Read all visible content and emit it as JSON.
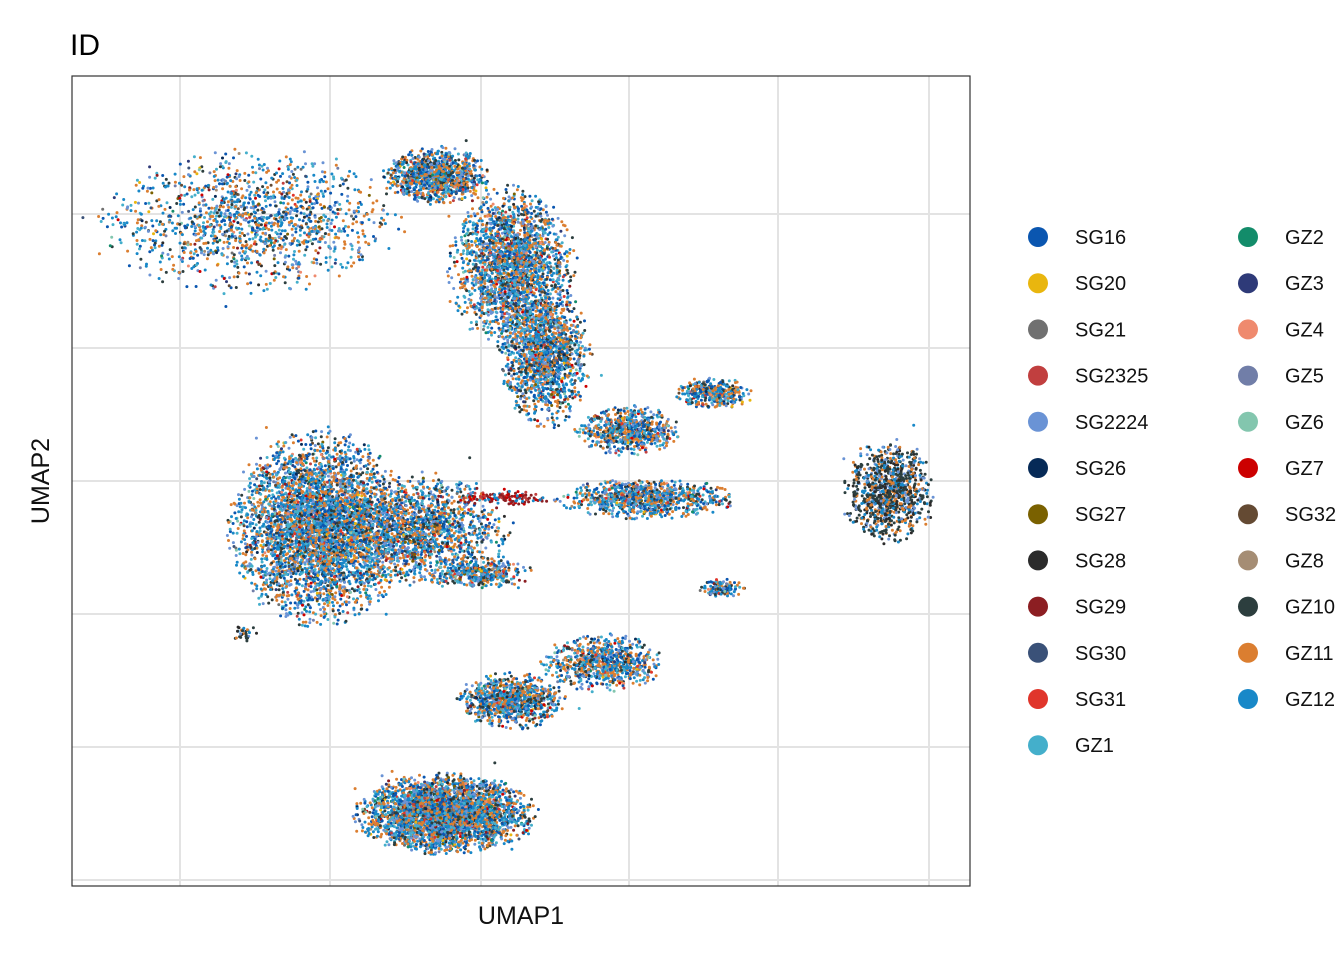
{
  "chart_data": {
    "type": "scatter",
    "title": "ID",
    "xlabel": "UMAP1",
    "ylabel": "UMAP2",
    "grid": true,
    "legend_placement": "right",
    "legend": {
      "columns": 2,
      "entries": [
        {
          "name": "SG16",
          "color": "#0A56B0"
        },
        {
          "name": "SG20",
          "color": "#E9B60E"
        },
        {
          "name": "SG21",
          "color": "#707070"
        },
        {
          "name": "SG2325",
          "color": "#C13F3F"
        },
        {
          "name": "SG2224",
          "color": "#6A93D5"
        },
        {
          "name": "SG26",
          "color": "#062A57"
        },
        {
          "name": "SG27",
          "color": "#7A6100"
        },
        {
          "name": "SG28",
          "color": "#2B2B2B"
        },
        {
          "name": "SG29",
          "color": "#8C1E22"
        },
        {
          "name": "SG30",
          "color": "#3A5178"
        },
        {
          "name": "SG31",
          "color": "#E0352B"
        },
        {
          "name": "GZ1",
          "color": "#44AFCB"
        },
        {
          "name": "GZ2",
          "color": "#138C6A"
        },
        {
          "name": "GZ3",
          "color": "#2E3A78"
        },
        {
          "name": "GZ4",
          "color": "#EF8A6E"
        },
        {
          "name": "GZ5",
          "color": "#717EA8"
        },
        {
          "name": "GZ6",
          "color": "#83C6AE"
        },
        {
          "name": "GZ7",
          "color": "#CC0000"
        },
        {
          "name": "SG32",
          "color": "#644A33"
        },
        {
          "name": "GZ8",
          "color": "#A58D74"
        },
        {
          "name": "GZ10",
          "color": "#2C3E3E"
        },
        {
          "name": "GZ11",
          "color": "#DB7E30"
        },
        {
          "name": "GZ12",
          "color": "#1888C8"
        }
      ]
    },
    "clusters": [
      {
        "cx": 0.2,
        "cy": 0.86,
        "rx": 0.17,
        "ry": 0.09,
        "n": 1400,
        "mix": "mixed"
      },
      {
        "cx": 0.42,
        "cy": 0.92,
        "rx": 0.06,
        "ry": 0.035,
        "n": 1100,
        "mix": "mixed"
      },
      {
        "cx": 0.51,
        "cy": 0.8,
        "rx": 0.07,
        "ry": 0.1,
        "n": 2200,
        "mix": "mixed"
      },
      {
        "cx": 0.55,
        "cy": 0.68,
        "rx": 0.05,
        "ry": 0.09,
        "n": 1500,
        "mix": "mixed"
      },
      {
        "cx": 0.65,
        "cy": 0.58,
        "rx": 0.06,
        "ry": 0.03,
        "n": 700,
        "mix": "mixed"
      },
      {
        "cx": 0.75,
        "cy": 0.63,
        "rx": 0.045,
        "ry": 0.02,
        "n": 350,
        "mix": "mixed"
      },
      {
        "cx": 0.96,
        "cy": 0.5,
        "rx": 0.05,
        "ry": 0.065,
        "n": 1000,
        "mix": "dark"
      },
      {
        "cx": 0.28,
        "cy": 0.45,
        "rx": 0.1,
        "ry": 0.12,
        "n": 4200,
        "mix": "mixed"
      },
      {
        "cx": 0.4,
        "cy": 0.45,
        "rx": 0.1,
        "ry": 0.07,
        "n": 1600,
        "mix": "mixed"
      },
      {
        "cx": 0.47,
        "cy": 0.39,
        "rx": 0.06,
        "ry": 0.02,
        "n": 400,
        "mix": "mixed"
      },
      {
        "cx": 0.67,
        "cy": 0.49,
        "rx": 0.1,
        "ry": 0.025,
        "n": 900,
        "mix": "mixed"
      },
      {
        "cx": 0.5,
        "cy": 0.49,
        "rx": 0.05,
        "ry": 0.012,
        "n": 120,
        "mix": "red"
      },
      {
        "cx": 0.76,
        "cy": 0.37,
        "rx": 0.025,
        "ry": 0.012,
        "n": 120,
        "mix": "mixed"
      },
      {
        "cx": 0.51,
        "cy": 0.22,
        "rx": 0.06,
        "ry": 0.035,
        "n": 900,
        "mix": "mixed"
      },
      {
        "cx": 0.62,
        "cy": 0.27,
        "rx": 0.07,
        "ry": 0.035,
        "n": 800,
        "mix": "mixed"
      },
      {
        "cx": 0.43,
        "cy": 0.07,
        "rx": 0.1,
        "ry": 0.05,
        "n": 3400,
        "mix": "mixed"
      },
      {
        "cx": 0.19,
        "cy": 0.31,
        "rx": 0.014,
        "ry": 0.012,
        "n": 30,
        "mix": "dark"
      }
    ]
  }
}
